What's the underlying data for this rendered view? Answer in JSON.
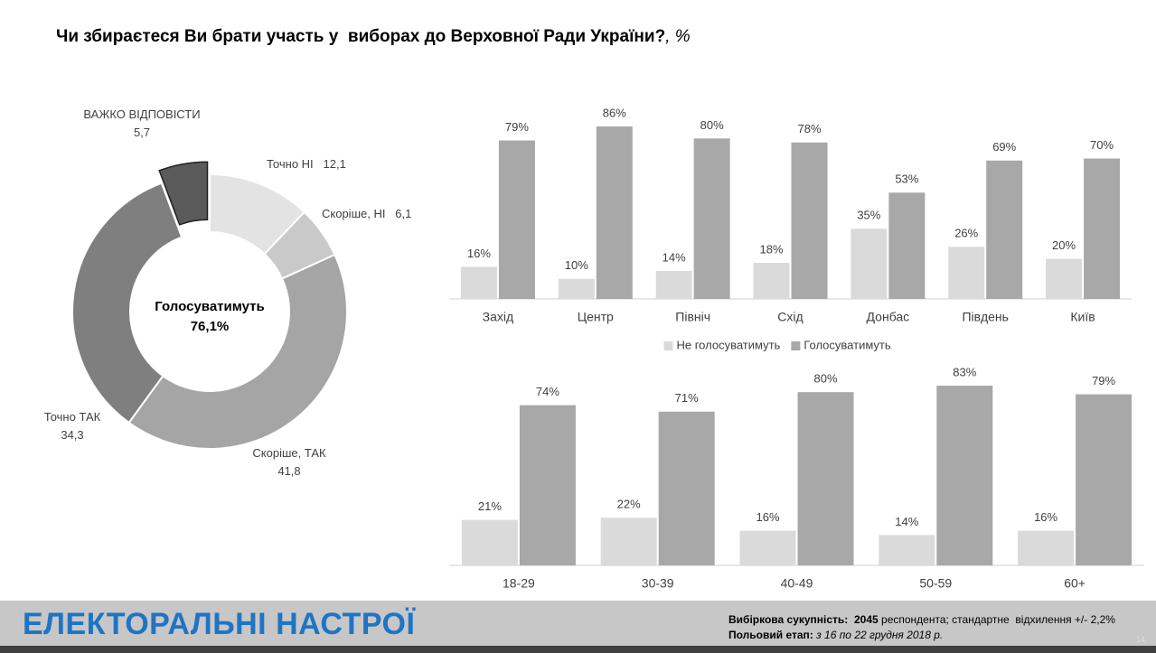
{
  "title": "Чи збираєтеся Ви брати участь у  виборах до Верховної Ради України?",
  "title_unit": ", %",
  "chart_data": [
    {
      "type": "donut",
      "categories": [
        "Точно НІ",
        "Скоріше, НІ",
        "Скоріше, ТАК",
        "Точно ТАК",
        "ВАЖКО ВІДПОВІСТИ"
      ],
      "values": [
        12.1,
        6.1,
        41.8,
        34.3,
        5.7
      ],
      "value_labels": [
        "12,1",
        "6,1",
        "41,8",
        "34,3",
        "5,7"
      ],
      "colors": [
        "#e3e3e3",
        "#c9c9c9",
        "#a5a5a5",
        "#7f7f7f",
        "#5a5a5a"
      ],
      "exploded": 4,
      "center_label": "Голосуватимуть",
      "center_text": "76,1%"
    },
    {
      "type": "bar",
      "categories": [
        "Захід",
        "Центр",
        "Північ",
        "Схід",
        "Донбас",
        "Південь",
        "Київ"
      ],
      "series": [
        {
          "name": "Не голосуватимуть",
          "color": "#dadada",
          "values": [
            16,
            10,
            14,
            18,
            35,
            26,
            20
          ],
          "value_labels": [
            "16%",
            "10%",
            "14%",
            "18%",
            "35%",
            "26%",
            "20%"
          ]
        },
        {
          "name": "Голосуватимуть",
          "color": "#a8a8a8",
          "values": [
            79,
            86,
            80,
            78,
            53,
            69,
            70
          ],
          "value_labels": [
            "79%",
            "86%",
            "80%",
            "78%",
            "53%",
            "69%",
            "70%"
          ]
        }
      ],
      "legend": "bottom"
    },
    {
      "type": "bar",
      "categories": [
        "18-29",
        "30-39",
        "40-49",
        "50-59",
        "60+"
      ],
      "series": [
        {
          "color": "#dadada",
          "values": [
            21,
            22,
            16,
            14,
            16
          ],
          "value_labels": [
            "21%",
            "22%",
            "16%",
            "14%",
            "16%"
          ]
        },
        {
          "color": "#a8a8a8",
          "values": [
            74,
            71,
            80,
            83,
            79
          ],
          "value_labels": [
            "74%",
            "71%",
            "80%",
            "83%",
            "79%"
          ]
        }
      ]
    }
  ],
  "footer": {
    "title": "ЕЛЕКТОРАЛЬНІ НАСТРОЇ",
    "sample_label": "Вибіркова сукупність:",
    "sample_size": "2045",
    "sample_text": "респондента; стандартне  відхилення +/- 2,2%",
    "fieldwork_label": "Польовий етап:",
    "fieldwork_text": "з 16 по 22 грудня 2018 р.",
    "page": "14"
  }
}
